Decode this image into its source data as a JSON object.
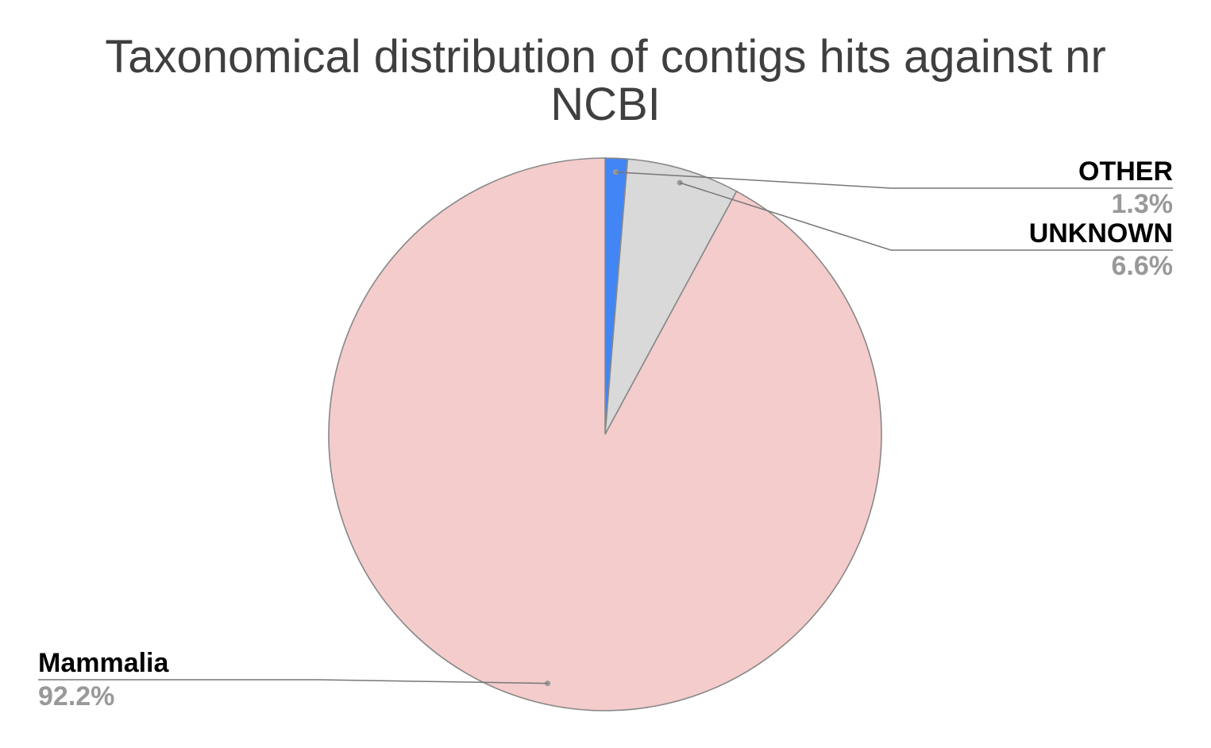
{
  "title_lines": [
    "Taxonomical distribution of contigs hits against nr",
    "NCBI"
  ],
  "chart_data": {
    "type": "pie",
    "title": "Taxonomical distribution of contigs hits against nr NCBI",
    "legend": "none (callout labels on slices)",
    "start_angle": "12 o'clock, clockwise",
    "slices": [
      {
        "label": "OTHER",
        "value": 1.3,
        "value_label": "1.3%",
        "color": "#4285f4",
        "label_side": "right"
      },
      {
        "label": "UNKNOWN",
        "value": 6.6,
        "value_label": "6.6%",
        "color": "#d9d9d9",
        "label_side": "right"
      },
      {
        "label": "Mammalia",
        "value": 92.2,
        "value_label": "92.2%",
        "color": "#f4cccc",
        "label_side": "left"
      }
    ],
    "slice_border_color": "#888888",
    "label_color": "#000000",
    "value_label_color": "#999999",
    "leader_line_color": "#777777"
  }
}
